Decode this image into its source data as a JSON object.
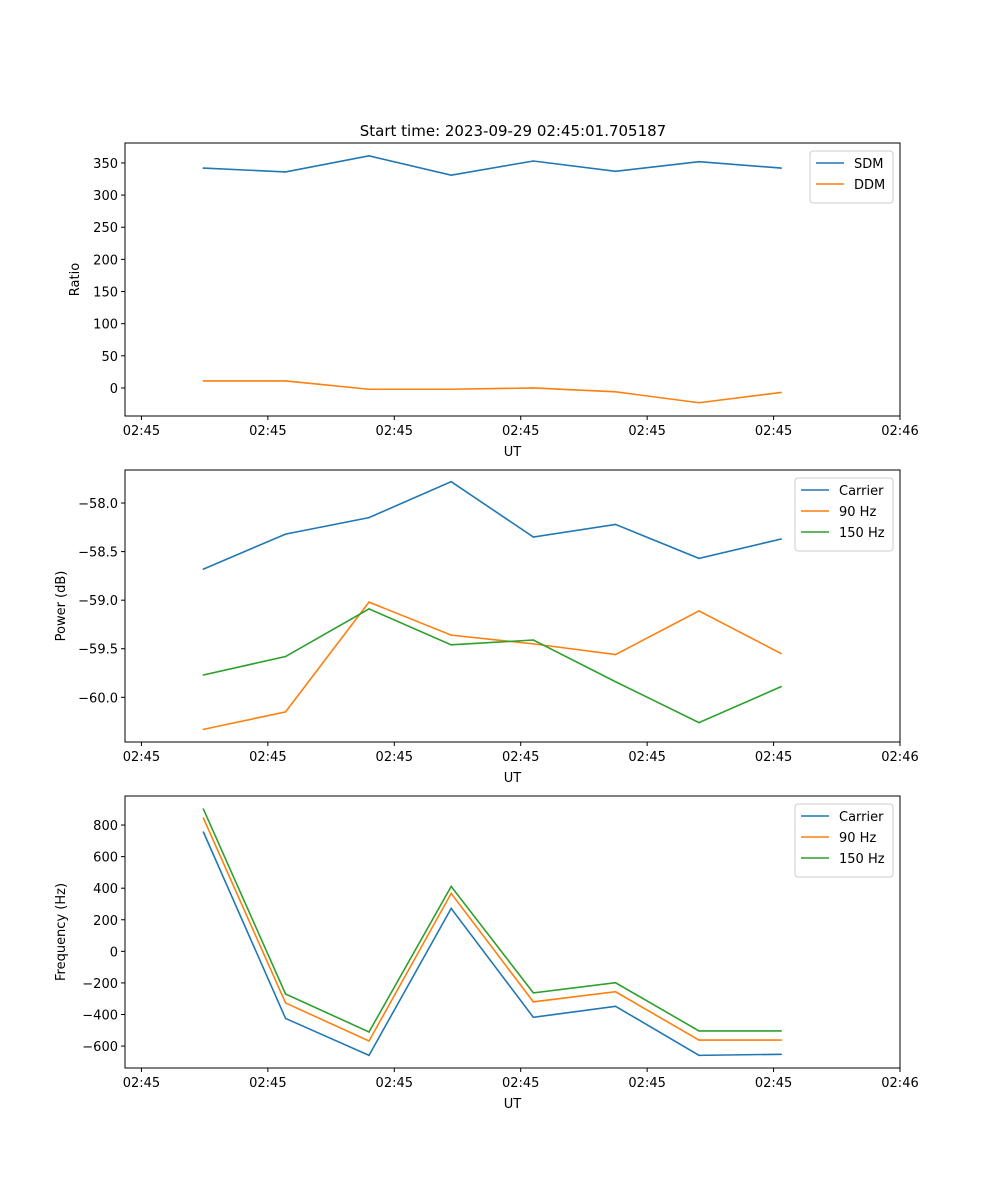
{
  "title": "Start time: 2023-09-29 02:45:01.705187",
  "chart_data": [
    {
      "type": "line",
      "xlabel": "UT",
      "ylabel": "Ratio",
      "xlim": [
        -1.3,
        60
      ],
      "ylim": [
        -43.6,
        381
      ],
      "xticks": [
        0,
        10,
        20,
        30,
        40,
        50,
        60
      ],
      "xticklabels": [
        "02:45",
        "02:45",
        "02:45",
        "02:45",
        "02:45",
        "02:45",
        "02:46"
      ],
      "yticks": [
        0,
        50,
        100,
        150,
        200,
        250,
        300,
        350
      ],
      "yticklabels": [
        "0",
        "50",
        "100",
        "150",
        "200",
        "250",
        "300",
        "350"
      ],
      "x": [
        4.9,
        11.4,
        18.0,
        24.5,
        31.0,
        37.5,
        44.1,
        50.6
      ],
      "legend": "top-right",
      "series": [
        {
          "name": "SDM",
          "color": "#1f77b4",
          "values": [
            342,
            336,
            361,
            331,
            353,
            337,
            352,
            342
          ]
        },
        {
          "name": "DDM",
          "color": "#ff7f0e",
          "values": [
            11,
            11,
            -2,
            -2,
            0,
            -6,
            -23,
            -7
          ]
        }
      ]
    },
    {
      "type": "line",
      "xlabel": "UT",
      "ylabel": "Power (dB)",
      "xlim": [
        -1.3,
        60
      ],
      "ylim": [
        -60.46,
        -57.66
      ],
      "xticks": [
        0,
        10,
        20,
        30,
        40,
        50,
        60
      ],
      "xticklabels": [
        "02:45",
        "02:45",
        "02:45",
        "02:45",
        "02:45",
        "02:45",
        "02:46"
      ],
      "yticks": [
        -60,
        -59.5,
        -59,
        -58.5,
        -58
      ],
      "yticklabels": [
        "−60.0",
        "−59.5",
        "−59.0",
        "−58.5",
        "−58.0"
      ],
      "x": [
        4.9,
        11.4,
        18.0,
        24.5,
        31.0,
        37.5,
        44.1,
        50.6
      ],
      "legend": "top-right",
      "series": [
        {
          "name": "Carrier",
          "color": "#1f77b4",
          "values": [
            -58.68,
            -58.32,
            -58.15,
            -57.78,
            -58.35,
            -58.22,
            -58.57,
            -58.37
          ]
        },
        {
          "name": "90 Hz",
          "color": "#ff7f0e",
          "values": [
            -60.33,
            -60.15,
            -59.02,
            -59.36,
            -59.45,
            -59.56,
            -59.11,
            -59.55
          ]
        },
        {
          "name": "150 Hz",
          "color": "#2ca02c",
          "values": [
            -59.77,
            -59.58,
            -59.09,
            -59.46,
            -59.41,
            -59.84,
            -60.26,
            -59.89
          ]
        }
      ]
    },
    {
      "type": "line",
      "xlabel": "UT",
      "ylabel": "Frequency (Hz)",
      "xlim": [
        -1.3,
        60
      ],
      "ylim": [
        -739,
        984
      ],
      "xticks": [
        0,
        10,
        20,
        30,
        40,
        50,
        60
      ],
      "xticklabels": [
        "02:45",
        "02:45",
        "02:45",
        "02:45",
        "02:45",
        "02:45",
        "02:46"
      ],
      "yticks": [
        -600,
        -400,
        -200,
        0,
        200,
        400,
        600,
        800
      ],
      "yticklabels": [
        "−600",
        "−400",
        "−200",
        "0",
        "200",
        "400",
        "600",
        "800"
      ],
      "x": [
        4.9,
        11.4,
        18.0,
        24.5,
        31.0,
        37.5,
        44.1,
        50.6
      ],
      "legend": "top-right",
      "series": [
        {
          "name": "Carrier",
          "color": "#1f77b4",
          "values": [
            756,
            -425,
            -659,
            272,
            -418,
            -348,
            -659,
            -652
          ]
        },
        {
          "name": "90 Hz",
          "color": "#ff7f0e",
          "values": [
            844,
            -327,
            -568,
            367,
            -320,
            -256,
            -562,
            -562
          ]
        },
        {
          "name": "150 Hz",
          "color": "#2ca02c",
          "values": [
            901,
            -270,
            -511,
            411,
            -263,
            -199,
            -504,
            -504
          ]
        }
      ]
    }
  ]
}
